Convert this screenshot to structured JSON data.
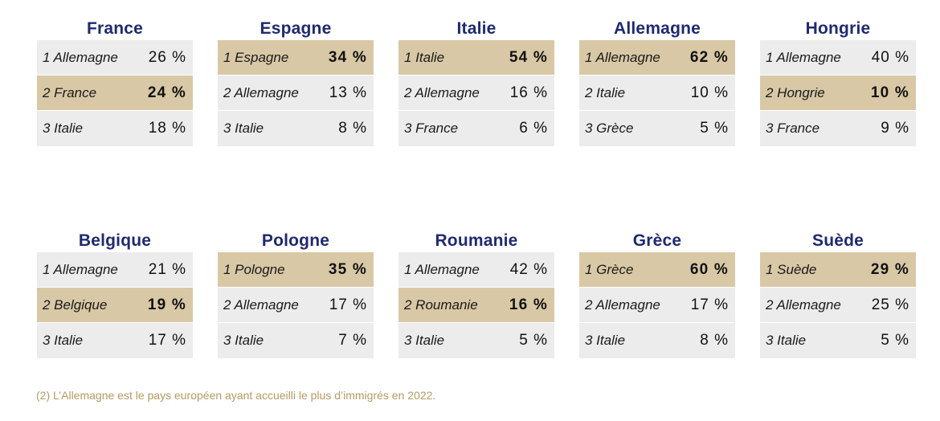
{
  "countries_top": [
    {
      "name": "France",
      "rows": [
        {
          "label": "1 Allemagne",
          "value": "26 %",
          "highlight": false
        },
        {
          "label": "2 France",
          "value": "24 %",
          "highlight": true
        },
        {
          "label": "3 Italie",
          "value": "18 %",
          "highlight": false
        }
      ]
    },
    {
      "name": "Espagne",
      "rows": [
        {
          "label": "1 Espagne",
          "value": "34 %",
          "highlight": true
        },
        {
          "label": "2 Allemagne",
          "value": "13 %",
          "highlight": false
        },
        {
          "label": "3 Italie",
          "value": "8 %",
          "highlight": false
        }
      ]
    },
    {
      "name": "Italie",
      "rows": [
        {
          "label": "1 Italie",
          "value": "54 %",
          "highlight": true
        },
        {
          "label": "2 Allemagne",
          "value": "16 %",
          "highlight": false
        },
        {
          "label": "3 France",
          "value": "6 %",
          "highlight": false
        }
      ]
    },
    {
      "name": "Allemagne",
      "rows": [
        {
          "label": "1 Allemagne",
          "value": "62 %",
          "highlight": true
        },
        {
          "label": "2 Italie",
          "value": "10 %",
          "highlight": false
        },
        {
          "label": "3 Grèce",
          "value": "5 %",
          "highlight": false
        }
      ]
    },
    {
      "name": "Hongrie",
      "rows": [
        {
          "label": "1 Allemagne",
          "value": "40 %",
          "highlight": false
        },
        {
          "label": "2 Hongrie",
          "value": "10 %",
          "highlight": true
        },
        {
          "label": "3 France",
          "value": "9 %",
          "highlight": false
        }
      ]
    }
  ],
  "countries_bottom": [
    {
      "name": "Belgique",
      "rows": [
        {
          "label": "1 Allemagne",
          "value": "21 %",
          "highlight": false
        },
        {
          "label": "2 Belgique",
          "value": "19 %",
          "highlight": true
        },
        {
          "label": "3 Italie",
          "value": "17 %",
          "highlight": false
        }
      ]
    },
    {
      "name": "Pologne",
      "rows": [
        {
          "label": "1 Pologne",
          "value": "35 %",
          "highlight": true
        },
        {
          "label": "2 Allemagne",
          "value": "17 %",
          "highlight": false
        },
        {
          "label": "3 Italie",
          "value": "7 %",
          "highlight": false
        }
      ]
    },
    {
      "name": "Roumanie",
      "rows": [
        {
          "label": "1 Allemagne",
          "value": "42 %",
          "highlight": false
        },
        {
          "label": "2 Roumanie",
          "value": "16 %",
          "highlight": true
        },
        {
          "label": "3 Italie",
          "value": "5 %",
          "highlight": false
        }
      ]
    },
    {
      "name": "Grèce",
      "rows": [
        {
          "label": "1 Grèce",
          "value": "60 %",
          "highlight": true
        },
        {
          "label": "2 Allemagne",
          "value": "17 %",
          "highlight": false
        },
        {
          "label": "3 Italie",
          "value": "8 %",
          "highlight": false
        }
      ]
    },
    {
      "name": "Suède",
      "rows": [
        {
          "label": "1 Suède",
          "value": "29 %",
          "highlight": true
        },
        {
          "label": "2 Allemagne",
          "value": "25 %",
          "highlight": false
        },
        {
          "label": "3 Italie",
          "value": "5 %",
          "highlight": false
        }
      ]
    }
  ],
  "footnote": "(2) L’Allemagne est le pays européen ayant accueilli le plus d’immigrés en 2022.",
  "colors": {
    "title": "#1f2a6f",
    "row_default": "#ececec",
    "row_highlight": "#d8c8a5",
    "footnote": "#b69a62"
  }
}
